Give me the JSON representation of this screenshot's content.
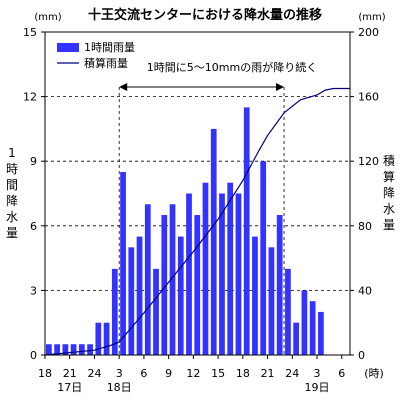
{
  "chart_data": {
    "type": "bar",
    "title": "十王交流センターにおける降水量の推移",
    "left_axis": {
      "unit": "(mm)",
      "label": "1時間降水量",
      "ylim": [
        0,
        15
      ],
      "ticks": [
        0,
        3,
        6,
        9,
        12,
        15
      ]
    },
    "right_axis": {
      "unit": "(mm)",
      "label": "積算降水量",
      "ylim": [
        0,
        200
      ],
      "ticks": [
        0,
        40,
        80,
        120,
        160,
        200
      ]
    },
    "x_axis": {
      "hour_labels": [
        "18",
        "21",
        "24",
        "3",
        "6",
        "9",
        "12",
        "15",
        "18",
        "21",
        "24",
        "3",
        "6"
      ],
      "day_labels": [
        {
          "text": "17日",
          "at": "21"
        },
        {
          "text": "18日",
          "at": "3"
        },
        {
          "text": "19日",
          "at": "3"
        }
      ],
      "unit": "(時)"
    },
    "hours": [
      "18",
      "19",
      "20",
      "21",
      "22",
      "23",
      "24",
      "1",
      "2",
      "3",
      "4",
      "5",
      "6",
      "7",
      "8",
      "9",
      "10",
      "11",
      "12",
      "13",
      "14",
      "15",
      "16",
      "17",
      "18",
      "19",
      "20",
      "21",
      "22",
      "23",
      "24",
      "1",
      "2",
      "3"
    ],
    "series": [
      {
        "name": "1時間雨量",
        "kind": "bar",
        "axis": "left",
        "color": "#3333ff",
        "values": [
          0.5,
          0.5,
          0.5,
          0.5,
          0.5,
          0.5,
          1.5,
          1.5,
          4.0,
          8.5,
          5.0,
          5.5,
          7.0,
          4.0,
          6.5,
          7.0,
          5.5,
          7.5,
          6.5,
          8.0,
          10.5,
          7.5,
          8.0,
          7.5,
          11.5,
          5.5,
          9.0,
          5.0,
          6.5,
          4.0,
          1.5,
          3.0,
          2.5,
          2.0
        ]
      },
      {
        "name": "積算雨量",
        "kind": "line",
        "axis": "right",
        "color": "#000080",
        "points": [
          {
            "x": 18,
            "y": 0
          },
          {
            "x": 24,
            "y": 3
          },
          {
            "x": 26,
            "y": 6
          },
          {
            "x": 27,
            "y": 8
          },
          {
            "x": 28,
            "y": 14
          },
          {
            "x": 30,
            "y": 26
          },
          {
            "x": 33,
            "y": 45
          },
          {
            "x": 36,
            "y": 64
          },
          {
            "x": 39,
            "y": 84
          },
          {
            "x": 42,
            "y": 108
          },
          {
            "x": 44,
            "y": 127
          },
          {
            "x": 45,
            "y": 136
          },
          {
            "x": 47,
            "y": 150
          },
          {
            "x": 49,
            "y": 158
          },
          {
            "x": 51,
            "y": 161
          },
          {
            "x": 52,
            "y": 164
          },
          {
            "x": 53,
            "y": 165
          },
          {
            "x": 55,
            "y": 165
          }
        ]
      }
    ],
    "annotation": {
      "text": "1時間に5～10mmの雨が降り続く",
      "from_x": 27,
      "to_x": 47
    },
    "grid": "dashed horizontal at each left tick; dashed vertical at annotation bounds",
    "legend": "top-left",
    "colors": {
      "bar": "#3333ff",
      "line": "#000080"
    }
  }
}
